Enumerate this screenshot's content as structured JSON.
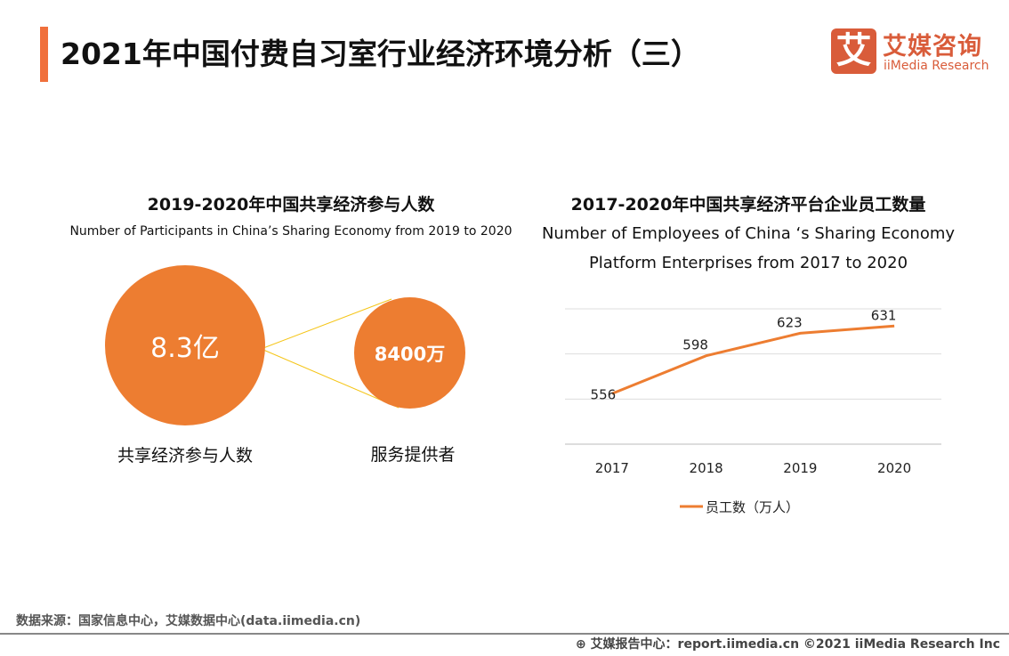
{
  "header": {
    "title": "2021年中国付费自习室行业经济环境分析（三）",
    "accent": "#f0703c"
  },
  "logo": {
    "glyph": "艾",
    "cn": "艾媒咨询",
    "en": "iiMedia Research"
  },
  "left": {
    "title": "2019-2020年中国共享经济参与人数",
    "subtitle": "Number of Participants in China’s Sharing Economy from 2019 to 2020",
    "big_value": "8.3亿",
    "big_label": "共享经济参与人数",
    "small_value": "8400万",
    "small_label": "服务提供者",
    "color": "#ed7d31"
  },
  "chart_data": {
    "type": "line",
    "title": "2017-2020年中国共享经济平台企业员工数量",
    "subtitle_line1": "Number of Employees of China ‘s Sharing Economy",
    "subtitle_line2": "Platform Enterprises from 2017 to 2020",
    "categories": [
      "2017",
      "2018",
      "2019",
      "2020"
    ],
    "series": [
      {
        "name": "员工数（万人）",
        "values": [
          556,
          598,
          623,
          631
        ],
        "color": "#ed7d31"
      }
    ],
    "ylim": [
      500,
      650
    ],
    "grid": true,
    "legend": "bottom"
  },
  "footer": {
    "source": "数据来源：国家信息中心，艾媒数据中心(data.iimedia.cn)",
    "copyright": "艾媒报告中心：report.iimedia.cn   ©2021  iiMedia Research  Inc"
  }
}
